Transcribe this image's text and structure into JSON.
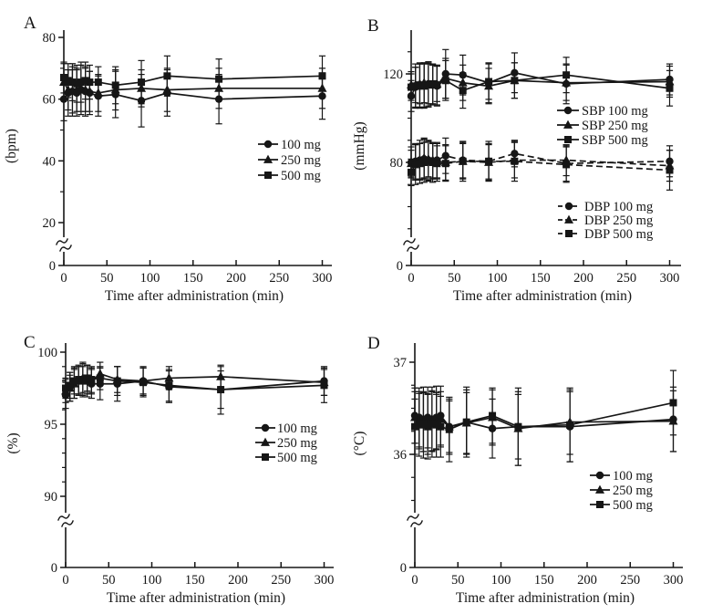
{
  "figure": {
    "background": "#ffffff",
    "ink": "#161616",
    "xlabel": "Time after administration (min)"
  },
  "chart_data": [
    {
      "panel": "A",
      "type": "line",
      "title": "",
      "xlabel": "Time after administration (min)",
      "ylabel": "(bpm)",
      "x": [
        0,
        5,
        10,
        15,
        20,
        25,
        30,
        40,
        60,
        90,
        120,
        180,
        300
      ],
      "xticks": [
        0,
        50,
        100,
        150,
        200,
        250,
        300
      ],
      "xlim": [
        0,
        310
      ],
      "yticks_major": [
        0,
        20,
        40,
        60,
        80
      ],
      "yticks_minor": [
        30,
        50,
        70
      ],
      "axis_break_between": [
        0,
        20
      ],
      "grid": false,
      "legend_position": "right-middle-inside",
      "series": [
        {
          "name": "100 mg",
          "marker": "circle",
          "line": "solid",
          "values": [
            60,
            62,
            62.5,
            62,
            63,
            62.5,
            62,
            61,
            61.5,
            59.5,
            62,
            60,
            61
          ],
          "errors": [
            7,
            7.5,
            8,
            7.5,
            8,
            8,
            7,
            6.5,
            7.5,
            8.5,
            7.5,
            8,
            7.5
          ]
        },
        {
          "name": "250 mg",
          "marker": "triangle",
          "line": "solid",
          "values": [
            65.5,
            63,
            62.5,
            63,
            63.5,
            63,
            62.5,
            62,
            63,
            63.5,
            63,
            63.5,
            63.5
          ],
          "errors": [
            6,
            6.5,
            7,
            7,
            7.5,
            7,
            6.5,
            6,
            6.5,
            6,
            7,
            6.5,
            6.5
          ]
        },
        {
          "name": "500 mg",
          "marker": "square",
          "line": "solid",
          "values": [
            67,
            66,
            65.5,
            65,
            65.5,
            66,
            65.5,
            65.5,
            64.5,
            65.5,
            67.5,
            66.5,
            67.5
          ],
          "errors": [
            5,
            5.5,
            6,
            6,
            6.5,
            6,
            5.5,
            5,
            6,
            7,
            6.5,
            6.5,
            6.5
          ]
        }
      ]
    },
    {
      "panel": "B",
      "type": "line",
      "title": "",
      "xlabel": "Time after administration (min)",
      "ylabel": "(mmHg)",
      "x": [
        0,
        5,
        10,
        15,
        20,
        25,
        30,
        40,
        60,
        90,
        120,
        180,
        300
      ],
      "xticks": [
        0,
        50,
        100,
        150,
        200,
        250,
        300
      ],
      "xlim": [
        0,
        310
      ],
      "yticks_major": [
        0,
        80,
        120
      ],
      "yticks_minor": [
        50,
        60,
        70,
        90,
        100,
        110,
        130
      ],
      "axis_break_between": [
        0,
        80
      ],
      "grid": false,
      "legend_position": "two-groups-right-inside",
      "series": [
        {
          "name": "SBP 100 mg",
          "marker": "circle",
          "line": "solid",
          "values": [
            110,
            114,
            114.5,
            115,
            115.5,
            115,
            114.5,
            120,
            119.5,
            116,
            120.5,
            115.5,
            117.5
          ],
          "errors": [
            7,
            9,
            10,
            10,
            10,
            9,
            9,
            11,
            9,
            9,
            9,
            9,
            7
          ]
        },
        {
          "name": "SBP 250 mg",
          "marker": "triangle",
          "line": "solid",
          "values": [
            115,
            115,
            115.5,
            116,
            115.5,
            115,
            115.5,
            118,
            116,
            114.5,
            117,
            116,
            116.5
          ],
          "errors": [
            6,
            8,
            9,
            9,
            9,
            9,
            8,
            9,
            8,
            8,
            8,
            8,
            7
          ]
        },
        {
          "name": "SBP 500 mg",
          "marker": "square",
          "line": "solid",
          "values": [
            114,
            114.5,
            115,
            114.5,
            115,
            115.5,
            115,
            117,
            112.5,
            116.5,
            117,
            119.5,
            113.5
          ],
          "errors": [
            6,
            10,
            10,
            10,
            10,
            9,
            9,
            9,
            8,
            8,
            8,
            8,
            8
          ]
        },
        {
          "name": "DBP 100 mg",
          "marker": "circle",
          "line": "dashed",
          "values": [
            80,
            80.5,
            81,
            81.5,
            81,
            80.5,
            81,
            83,
            81,
            80.5,
            84,
            79.5,
            80.5
          ],
          "errors": [
            7,
            8,
            9,
            9,
            9,
            8,
            8,
            8,
            8,
            8,
            6,
            8,
            7
          ]
        },
        {
          "name": "DBP 250 mg",
          "marker": "triangle",
          "line": "dashed",
          "values": [
            79.5,
            80,
            80.5,
            82,
            81.5,
            81,
            80.5,
            80,
            80.5,
            80,
            81,
            81,
            78.5
          ],
          "errors": [
            6,
            8,
            8,
            9,
            8,
            8,
            8,
            8,
            8,
            8,
            8,
            7,
            7
          ]
        },
        {
          "name": "DBP 500 mg",
          "marker": "square",
          "line": "dashed",
          "values": [
            75.5,
            79,
            79.5,
            80,
            80.5,
            80,
            79.5,
            79.5,
            80.5,
            80.5,
            80.5,
            79,
            76.5
          ],
          "errors": [
            6,
            9,
            9,
            9,
            9,
            9,
            8,
            8,
            9,
            9,
            9,
            8,
            9
          ]
        }
      ]
    },
    {
      "panel": "C",
      "type": "line",
      "title": "",
      "xlabel": "Time after administration (min)",
      "ylabel": "(%)",
      "x": [
        0,
        5,
        10,
        15,
        20,
        25,
        30,
        40,
        60,
        90,
        120,
        180,
        300
      ],
      "xticks": [
        0,
        50,
        100,
        150,
        200,
        250,
        300
      ],
      "xlim": [
        0,
        310
      ],
      "yticks_major": [
        0,
        90,
        95,
        100
      ],
      "yticks_minor": [
        91,
        92,
        93,
        94,
        96,
        97,
        98,
        99
      ],
      "axis_break_between": [
        0,
        90
      ],
      "grid": false,
      "legend_position": "right-middle-inside",
      "series": [
        {
          "name": "100 mg",
          "marker": "circle",
          "line": "solid",
          "values": [
            97.0,
            97.6,
            97.9,
            98.0,
            98.1,
            98.0,
            97.8,
            97.8,
            97.8,
            98.0,
            97.6,
            97.4,
            98.0
          ],
          "errors": [
            0.9,
            1.0,
            1.1,
            1.0,
            1.2,
            1.1,
            1.0,
            1.1,
            1.2,
            1.0,
            1.1,
            1.3,
            1.0
          ]
        },
        {
          "name": "250 mg",
          "marker": "triangle",
          "line": "solid",
          "values": [
            97.3,
            97.5,
            97.8,
            98.0,
            98.2,
            98.1,
            98.0,
            98.5,
            98.1,
            98.0,
            98.2,
            98.3,
            97.9
          ],
          "errors": [
            0.8,
            0.9,
            1.0,
            1.0,
            1.0,
            1.0,
            0.9,
            0.8,
            0.9,
            0.9,
            0.8,
            0.7,
            0.9
          ]
        },
        {
          "name": "500 mg",
          "marker": "square",
          "line": "solid",
          "values": [
            97.5,
            97.7,
            98.0,
            98.1,
            98.0,
            98.2,
            98.1,
            98.2,
            98.0,
            97.9,
            97.7,
            97.4,
            97.7
          ],
          "errors": [
            0.7,
            0.9,
            0.9,
            1.0,
            1.0,
            0.9,
            0.9,
            0.8,
            1.0,
            1.0,
            1.1,
            1.7,
            1.2
          ]
        }
      ]
    },
    {
      "panel": "D",
      "type": "line",
      "title": "",
      "xlabel": "Time after administration (min)",
      "ylabel": "(°C)",
      "x": [
        0,
        5,
        10,
        15,
        20,
        25,
        30,
        40,
        60,
        90,
        120,
        180,
        300
      ],
      "xticks": [
        0,
        50,
        100,
        150,
        200,
        250,
        300
      ],
      "xlim": [
        0,
        310
      ],
      "yticks_major": [
        0,
        36,
        37
      ],
      "yticks_minor": [
        35.5,
        35.75,
        36.25,
        36.5,
        36.75
      ],
      "axis_break_between": [
        0,
        36
      ],
      "grid": false,
      "legend_position": "right-lower-inside",
      "series": [
        {
          "name": "100 mg",
          "marker": "circle",
          "line": "solid",
          "values": [
            36.42,
            36.4,
            36.38,
            36.4,
            36.38,
            36.4,
            36.42,
            36.3,
            36.35,
            36.28,
            36.3,
            36.3,
            36.38
          ],
          "errors": [
            0.3,
            0.32,
            0.35,
            0.33,
            0.35,
            0.34,
            0.32,
            0.3,
            0.35,
            0.32,
            0.35,
            0.38,
            0.35
          ]
        },
        {
          "name": "250 mg",
          "marker": "triangle",
          "line": "solid",
          "values": [
            36.4,
            36.36,
            36.35,
            36.33,
            36.36,
            36.35,
            36.38,
            36.3,
            36.34,
            36.4,
            36.28,
            36.35,
            36.36
          ],
          "errors": [
            0.28,
            0.3,
            0.32,
            0.33,
            0.32,
            0.3,
            0.3,
            0.28,
            0.33,
            0.3,
            0.4,
            0.35,
            0.33
          ]
        },
        {
          "name": "500 mg",
          "marker": "square",
          "line": "solid",
          "values": [
            36.3,
            36.33,
            36.32,
            36.3,
            36.33,
            36.32,
            36.3,
            36.27,
            36.35,
            36.42,
            36.3,
            36.32,
            36.56
          ],
          "errors": [
            0.3,
            0.35,
            0.36,
            0.35,
            0.36,
            0.35,
            0.33,
            0.35,
            0.38,
            0.3,
            0.42,
            0.4,
            0.35
          ]
        }
      ]
    }
  ]
}
